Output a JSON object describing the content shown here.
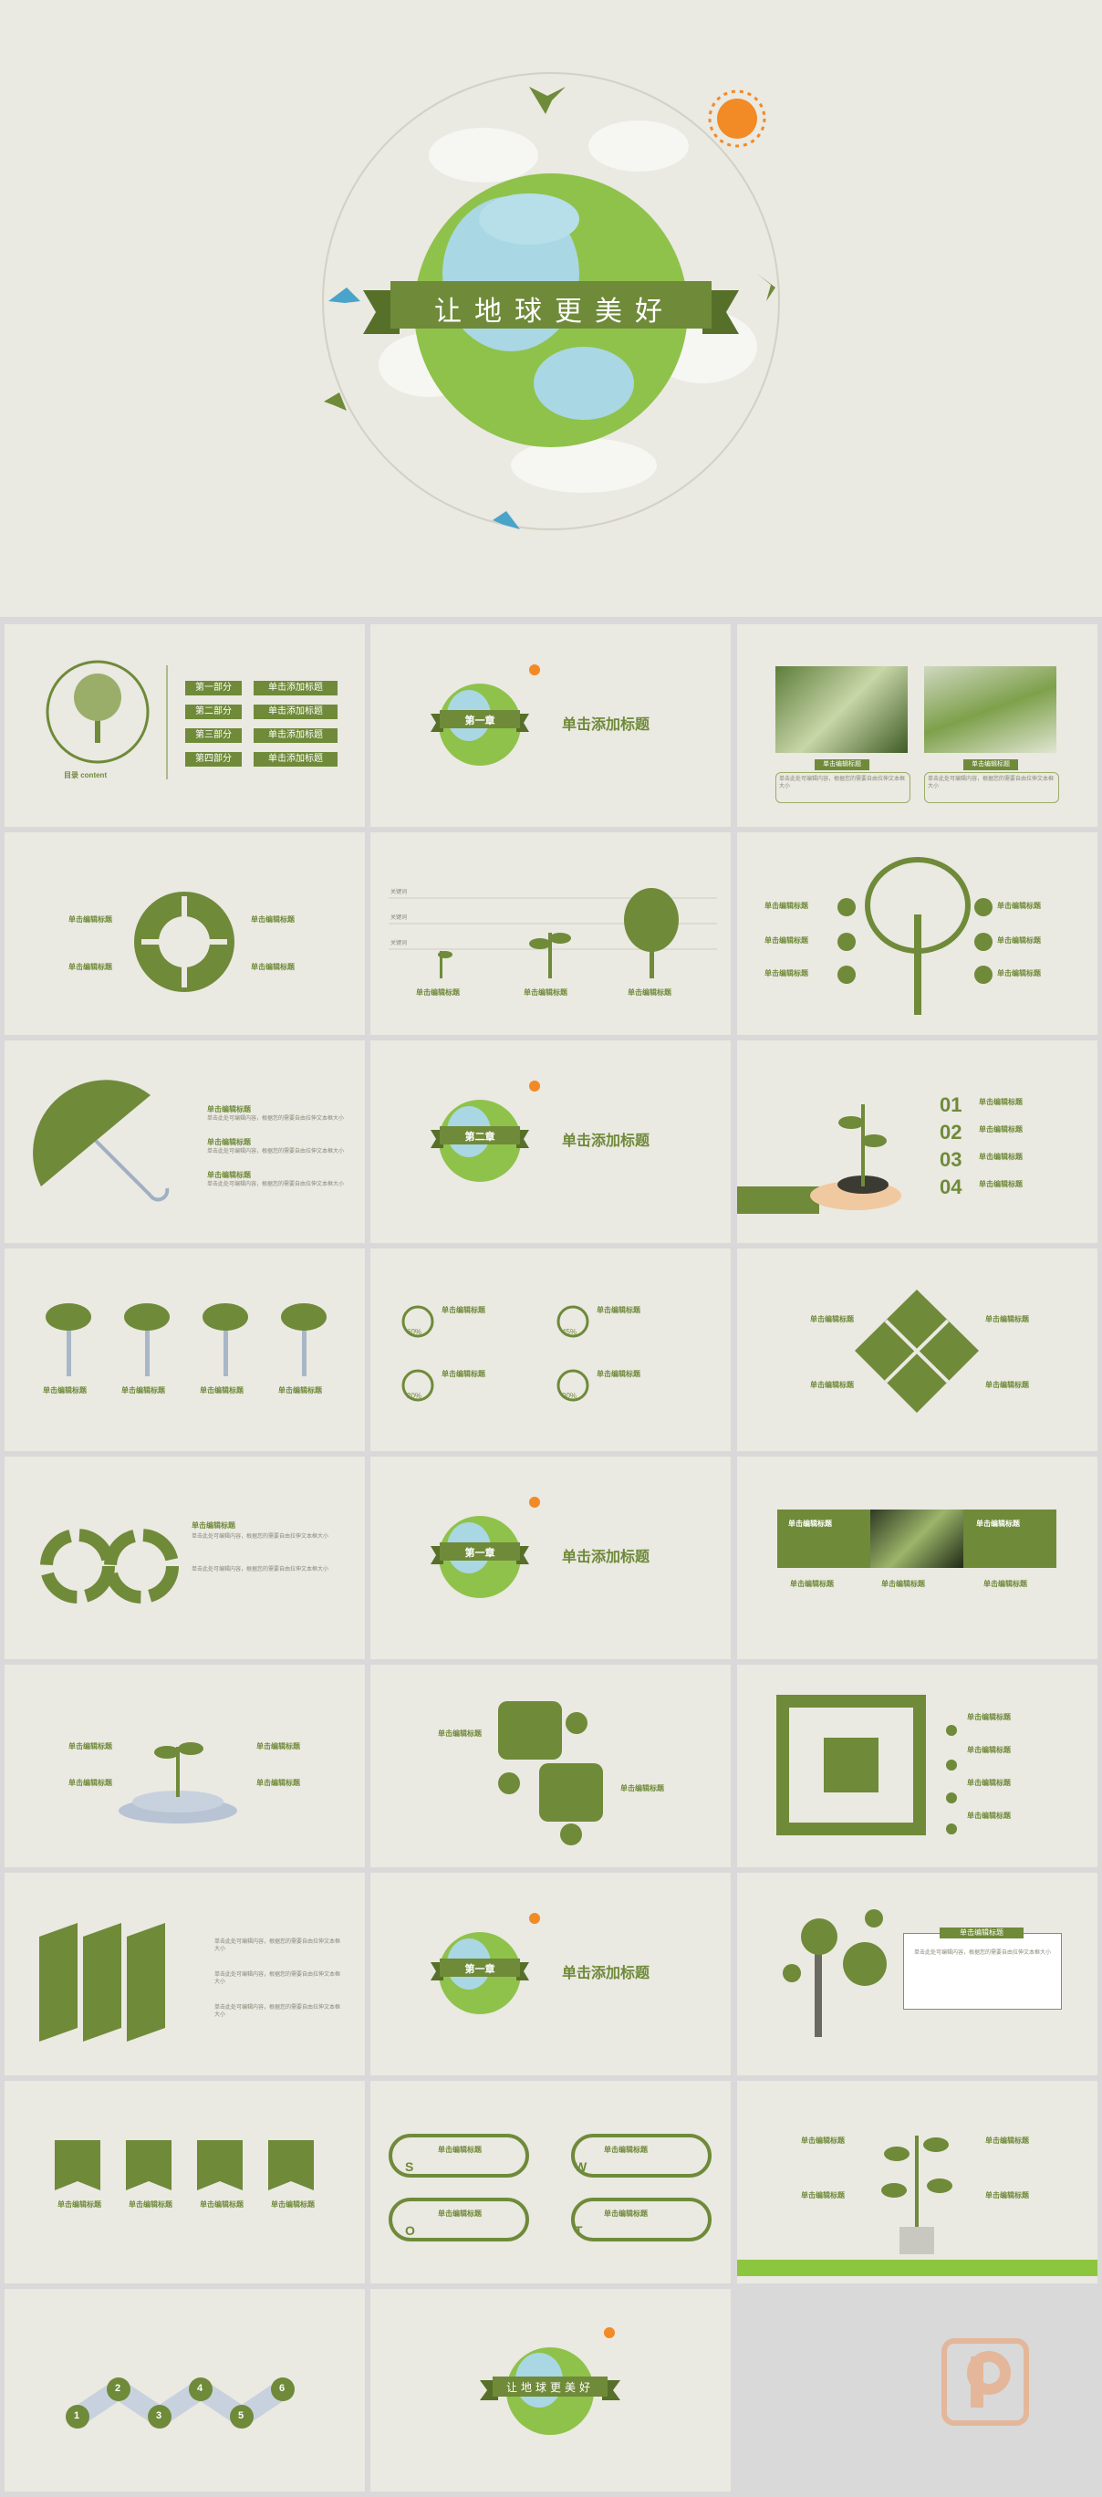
{
  "cover": {
    "title": "让地球更美好"
  },
  "toc": {
    "label": "目录 content",
    "parts": [
      "第一部分",
      "第二部分",
      "第三部分",
      "第四部分"
    ],
    "item_title": "单击添加标题"
  },
  "chapters": [
    {
      "name": "第一章",
      "title": "单击添加标题"
    },
    {
      "name": "第二章",
      "title": "单击添加标题"
    },
    {
      "name": "第一章",
      "title": "单击添加标题"
    },
    {
      "name": "第一章",
      "title": "单击添加标题"
    }
  ],
  "common": {
    "edit_title": "单击编辑标题",
    "edit_text": "单击此处可编辑内容，根据您的需要自由拉伸文本框大小",
    "plant_labels": [
      "关键词",
      "关键词",
      "关键词"
    ]
  },
  "numbers": [
    "01",
    "02",
    "03",
    "04"
  ],
  "percents": [
    "60%",
    "45%",
    "20%",
    "90%"
  ],
  "letters": [
    "S",
    "W",
    "O",
    "T"
  ],
  "steps": [
    "1",
    "2",
    "3",
    "4",
    "5",
    "6"
  ],
  "ending": {
    "title": "让地球更美好"
  },
  "colors": {
    "accent": "#6f8a39",
    "background": "#eae9e2"
  }
}
